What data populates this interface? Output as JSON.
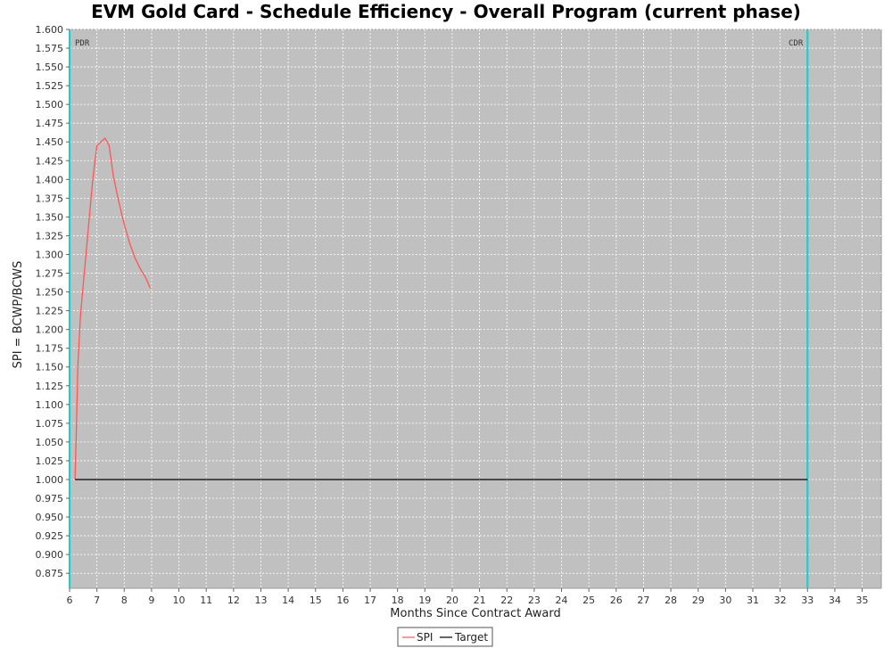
{
  "chart_data": {
    "type": "line",
    "title": "EVM Gold Card - Schedule Efficiency - Overall Program (current phase)",
    "xlabel": "Months Since Contract Award",
    "ylabel": "SPI = BCWP/BCWS",
    "xlim": [
      6,
      35.7
    ],
    "ylim": [
      0.855,
      1.6
    ],
    "x_ticks": [
      6,
      7,
      8,
      9,
      10,
      11,
      12,
      13,
      14,
      15,
      16,
      17,
      18,
      19,
      20,
      21,
      22,
      23,
      24,
      25,
      26,
      27,
      28,
      29,
      30,
      31,
      32,
      33,
      34,
      35
    ],
    "y_ticks": [
      0.875,
      0.9,
      0.925,
      0.95,
      0.975,
      1.0,
      1.025,
      1.05,
      1.075,
      1.1,
      1.125,
      1.15,
      1.175,
      1.2,
      1.225,
      1.25,
      1.275,
      1.3,
      1.325,
      1.35,
      1.375,
      1.4,
      1.425,
      1.45,
      1.475,
      1.5,
      1.525,
      1.55,
      1.575,
      1.6
    ],
    "grid": true,
    "background": "#c0c0c0",
    "series": [
      {
        "name": "SPI",
        "color": "#ff5555",
        "points": [
          [
            6.2,
            1.0
          ],
          [
            6.25,
            1.07
          ],
          [
            6.3,
            1.15
          ],
          [
            6.4,
            1.22
          ],
          [
            6.55,
            1.28
          ],
          [
            6.7,
            1.34
          ],
          [
            6.85,
            1.4
          ],
          [
            7.0,
            1.445
          ],
          [
            7.15,
            1.45
          ],
          [
            7.3,
            1.455
          ],
          [
            7.45,
            1.445
          ],
          [
            7.6,
            1.405
          ],
          [
            7.8,
            1.37
          ],
          [
            8.0,
            1.34
          ],
          [
            8.2,
            1.315
          ],
          [
            8.4,
            1.295
          ],
          [
            8.6,
            1.28
          ],
          [
            8.8,
            1.268
          ],
          [
            8.95,
            1.255
          ]
        ]
      },
      {
        "name": "Target",
        "color": "#000000",
        "points": [
          [
            6.2,
            1.0
          ],
          [
            33.0,
            1.0
          ]
        ]
      }
    ],
    "markers": [
      {
        "label": "PDR",
        "x": 6.0,
        "color": "#22cccc"
      },
      {
        "label": "CDR",
        "x": 33.0,
        "color": "#22cccc"
      }
    ],
    "legend": {
      "position": "bottom-center",
      "entries": [
        "SPI",
        "Target"
      ]
    }
  }
}
